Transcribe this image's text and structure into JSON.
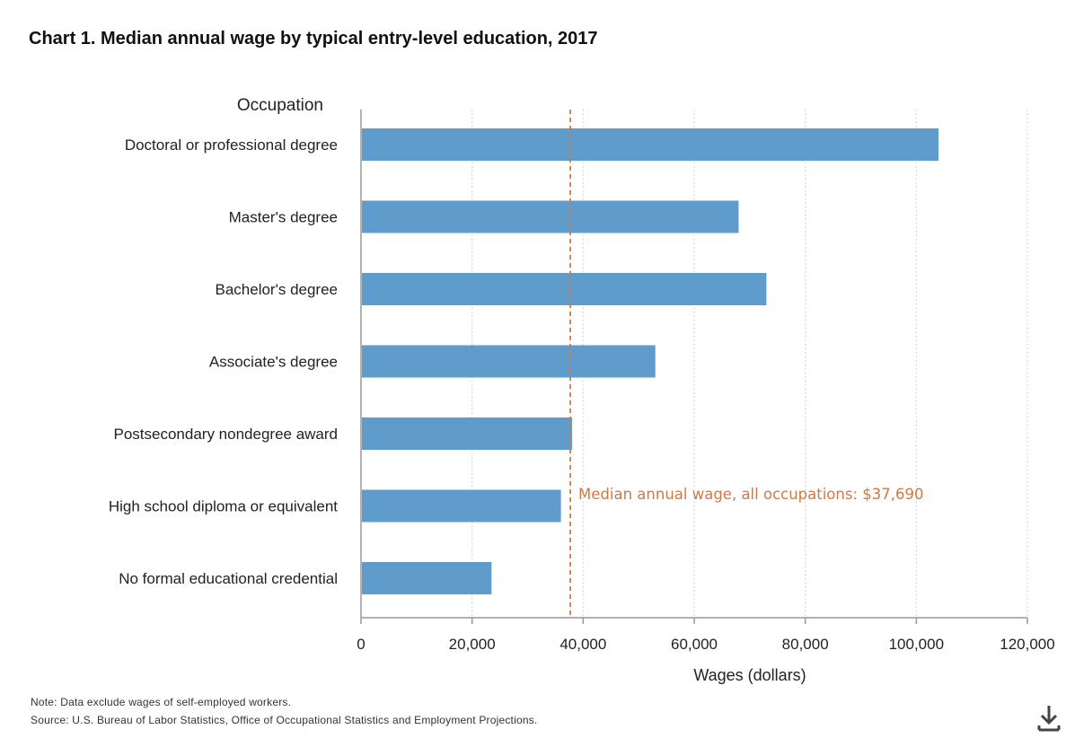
{
  "chart_data": {
    "type": "bar",
    "orientation": "horizontal",
    "title": "Chart 1. Median annual wage by typical entry-level education, 2017",
    "category_axis_title": "Occupation",
    "xlabel": "Wages (dollars)",
    "categories": [
      "Doctoral or professional degree",
      "Master's degree",
      "Bachelor's degree",
      "Associate's degree",
      "Postsecondary nondegree award",
      "High school diploma or equivalent",
      "No formal educational credential"
    ],
    "values": [
      104000,
      68000,
      73000,
      53000,
      38000,
      36000,
      23500
    ],
    "xlim": [
      0,
      120000
    ],
    "xticks": [
      0,
      20000,
      40000,
      60000,
      80000,
      100000,
      120000
    ],
    "xtick_labels": [
      "0",
      "20,000",
      "40,000",
      "60,000",
      "80,000",
      "100,000",
      "120,000"
    ],
    "grid": "vertical dotted",
    "bar_color": "#5f9ccb",
    "reference_line": {
      "value": 37690,
      "label": "Median annual wage, all occupations: $37,690",
      "color": "#cf7a45",
      "style": "dashed"
    }
  },
  "notes": {
    "note": "Note: Data exclude wages of self-employed workers.",
    "source": "Source: U.S. Bureau of Labor Statistics, Office of Occupational Statistics and Employment Projections."
  },
  "icons": {
    "download": "download-icon"
  }
}
